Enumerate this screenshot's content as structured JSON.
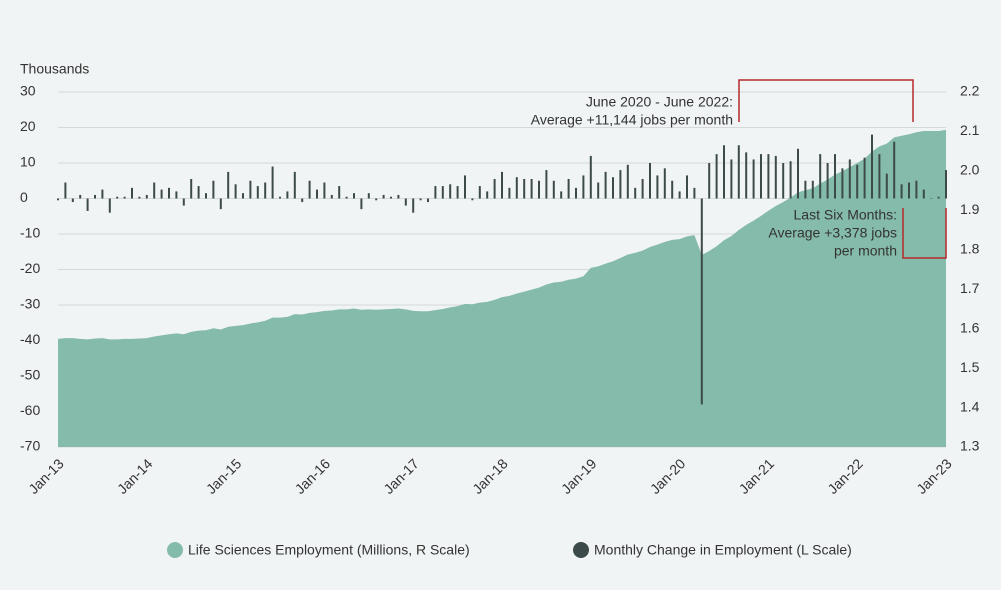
{
  "chart_data": {
    "type": "area-bar",
    "y_label": "Thousands",
    "categories": [
      "Jan-13",
      null,
      null,
      null,
      null,
      null,
      null,
      null,
      null,
      null,
      null,
      null,
      "Jan-14",
      null,
      null,
      null,
      null,
      null,
      null,
      null,
      null,
      null,
      null,
      null,
      "Jan-15",
      null,
      null,
      null,
      null,
      null,
      null,
      null,
      null,
      null,
      null,
      null,
      "Jan-16",
      null,
      null,
      null,
      null,
      null,
      null,
      null,
      null,
      null,
      null,
      null,
      "Jan-17",
      null,
      null,
      null,
      null,
      null,
      null,
      null,
      null,
      null,
      null,
      null,
      "Jan-18",
      null,
      null,
      null,
      null,
      null,
      null,
      null,
      null,
      null,
      null,
      null,
      "Jan-19",
      null,
      null,
      null,
      null,
      null,
      null,
      null,
      null,
      null,
      null,
      null,
      "Jan-20",
      null,
      null,
      null,
      null,
      null,
      null,
      null,
      null,
      null,
      null,
      null,
      "Jan-21",
      null,
      null,
      null,
      null,
      null,
      null,
      null,
      null,
      null,
      null,
      null,
      "Jan-22",
      null,
      null,
      null,
      null,
      null,
      null,
      null,
      null,
      null,
      null,
      null,
      "Jan-23"
    ],
    "series": [
      {
        "name": "Life Sciences Employment (Millions, R Scale)",
        "color": "#85bbaa",
        "axis": "y2",
        "kind": "area",
        "values": [
          1.574,
          1.576,
          1.576,
          1.574,
          1.573,
          1.575,
          1.576,
          1.573,
          1.573,
          1.574,
          1.574,
          1.575,
          1.576,
          1.58,
          1.583,
          1.586,
          1.588,
          1.586,
          1.592,
          1.595,
          1.596,
          1.601,
          1.598,
          1.605,
          1.607,
          1.609,
          1.613,
          1.616,
          1.62,
          1.628,
          1.628,
          1.63,
          1.637,
          1.636,
          1.64,
          1.642,
          1.645,
          1.646,
          1.649,
          1.649,
          1.651,
          1.648,
          1.649,
          1.648,
          1.649,
          1.65,
          1.651,
          1.649,
          1.645,
          1.644,
          1.644,
          1.647,
          1.65,
          1.654,
          1.657,
          1.663,
          1.662,
          1.666,
          1.668,
          1.673,
          1.68,
          1.683,
          1.689,
          1.694,
          1.699,
          1.704,
          1.712,
          1.717,
          1.719,
          1.724,
          1.727,
          1.733,
          1.754,
          1.758,
          1.765,
          1.771,
          1.779,
          1.788,
          1.792,
          1.798,
          1.807,
          1.813,
          1.82,
          1.825,
          1.827,
          1.834,
          1.837,
          1.787,
          1.797,
          1.809,
          1.824,
          1.835,
          1.85,
          1.863,
          1.874,
          1.886,
          1.899,
          1.911,
          1.921,
          1.932,
          1.946,
          1.951,
          1.956,
          1.968,
          1.978,
          1.991,
          1.999,
          2.01,
          2.02,
          2.031,
          2.049,
          2.062,
          2.069,
          2.085,
          2.089,
          2.093,
          2.098,
          2.101,
          2.101,
          2.101,
          2.104
        ]
      },
      {
        "name": "Monthly Change in Employment (L Scale)",
        "color": "#3d4a4a",
        "axis": "y",
        "kind": "bar",
        "values": [
          -0.5,
          4.5,
          -1,
          1,
          -3.5,
          1,
          2.5,
          -4,
          0.5,
          0.5,
          3,
          0.5,
          1,
          4.5,
          2.5,
          3,
          2,
          -2,
          5.5,
          3.5,
          1.5,
          5,
          -3,
          7.5,
          4,
          1.5,
          5,
          3.5,
          4.5,
          9,
          0.5,
          2,
          7.5,
          -1,
          5,
          2.5,
          4.5,
          1,
          3.5,
          0.5,
          1.5,
          -3,
          1.5,
          -0.5,
          1,
          0.5,
          1,
          -2,
          -4,
          -0.5,
          -1,
          3.5,
          3.5,
          4,
          3.5,
          6.5,
          -0.5,
          3.5,
          2,
          5.5,
          7.5,
          3,
          6,
          5.5,
          5.5,
          5,
          8,
          5,
          2,
          5.5,
          3,
          6.5,
          12,
          4.5,
          7.5,
          6,
          8,
          9.5,
          3,
          5.5,
          10,
          6.5,
          8.5,
          5,
          2,
          6.5,
          3,
          -58,
          10,
          12.5,
          15,
          11,
          15,
          13,
          11,
          12.5,
          12.5,
          12,
          10,
          10.5,
          14,
          5,
          5,
          12.5,
          10,
          12.5,
          8.5,
          11,
          9.5,
          11.5,
          18,
          12.5,
          7,
          16,
          4,
          4.5,
          5,
          2.5,
          0,
          0.5,
          8
        ]
      }
    ],
    "ylim": [
      -70,
      30
    ],
    "yticks": [
      -70,
      -60,
      -50,
      -40,
      -30,
      -20,
      -10,
      0,
      10,
      20,
      30
    ],
    "y2lim": [
      1.3,
      2.2
    ],
    "y2ticks": [
      1.3,
      1.4,
      1.5,
      1.6,
      1.7,
      1.8,
      1.9,
      {
        "value": 2,
        "label": "2.0"
      },
      2.1,
      2.2
    ],
    "grid": true,
    "legend": "bottom",
    "annotations": [
      [
        "June 2020 - June 2022:",
        "Average +11,144 jobs per month"
      ],
      [
        "Last Six Months:",
        "Average +3,378 jobs",
        "per month"
      ]
    ]
  }
}
